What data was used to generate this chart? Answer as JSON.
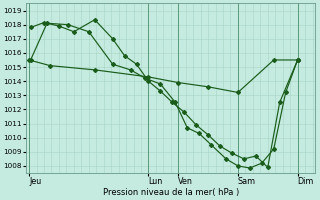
{
  "background_color": "#c5ebe0",
  "grid_minor_color": "#a8d4c4",
  "grid_major_color": "#5a9a7a",
  "line_color": "#1a5c1a",
  "xlabel": "Pression niveau de la mer( hPa )",
  "ylim": [
    1007.5,
    1019.5
  ],
  "yticks": [
    1008,
    1009,
    1010,
    1011,
    1012,
    1013,
    1014,
    1015,
    1016,
    1017,
    1018,
    1019
  ],
  "xtick_labels": [
    "Jeu",
    "Lun",
    "Ven",
    "Sam",
    "Dim"
  ],
  "xtick_positions": [
    0,
    4.0,
    5.0,
    7.0,
    9.0
  ],
  "xlim": [
    -0.1,
    9.6
  ],
  "series1_x": [
    0.0,
    0.7,
    2.2,
    4.0,
    5.0,
    6.0,
    7.0,
    8.2,
    9.0
  ],
  "series1_y": [
    1015.5,
    1015.1,
    1014.8,
    1014.3,
    1013.9,
    1013.6,
    1013.2,
    1015.5,
    1015.5
  ],
  "series2_x": [
    0.05,
    0.5,
    1.0,
    1.5,
    2.2,
    2.8,
    3.2,
    3.6,
    4.0,
    4.4,
    4.8,
    5.2,
    5.6,
    6.0,
    6.4,
    6.8,
    7.2,
    7.6,
    8.0,
    8.4,
    9.0
  ],
  "series2_y": [
    1017.8,
    1018.15,
    1017.9,
    1017.5,
    1018.35,
    1017.0,
    1015.8,
    1015.2,
    1014.0,
    1013.3,
    1012.5,
    1011.8,
    1010.9,
    1010.2,
    1009.4,
    1008.9,
    1008.5,
    1008.7,
    1007.9,
    1012.5,
    1015.5
  ],
  "series3_x": [
    0.05,
    0.6,
    1.3,
    2.0,
    2.8,
    3.4,
    3.9,
    4.4,
    4.9,
    5.3,
    5.7,
    6.1,
    6.6,
    7.0,
    7.4,
    7.8,
    8.2,
    8.6,
    9.0
  ],
  "series3_y": [
    1015.5,
    1018.1,
    1018.0,
    1017.5,
    1015.2,
    1014.8,
    1014.2,
    1013.8,
    1012.5,
    1010.7,
    1010.3,
    1009.5,
    1008.5,
    1008.0,
    1007.85,
    1008.2,
    1009.2,
    1013.2,
    1015.5
  ],
  "minor_xticks_count": 40,
  "marker": "D",
  "markersize": 2.0,
  "linewidth": 0.85
}
